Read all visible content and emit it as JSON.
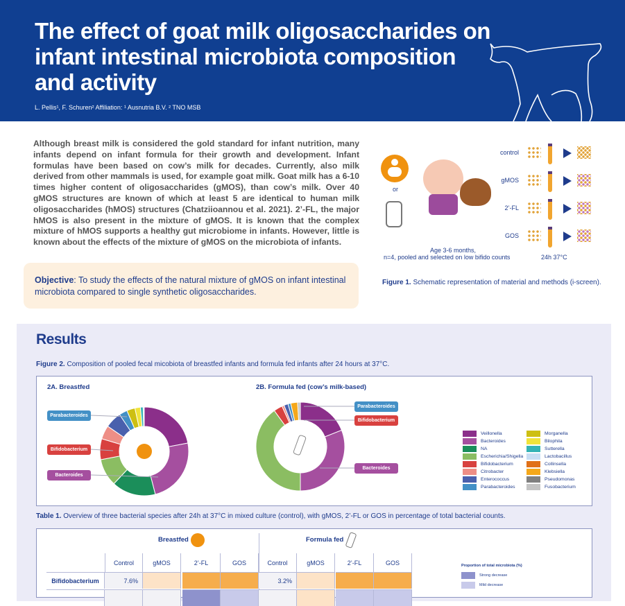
{
  "header": {
    "title": "The effect of goat milk oligosaccharides on infant intestinal microbiota composition and activity",
    "authors": "L. Pellis¹, F. Schuren² Affiliation: ¹ Ausnutria B.V. ² TNO MSB"
  },
  "intro": "Although breast milk is considered the gold standard for infant nutrition, many infants depend on infant formula for their growth and development. Infant formulas have been based on cow’s milk for decades. Currently, also milk derived from other mammals is used, for example goat milk. Goat milk has a 6-10 times higher content of oligosaccharides (gMOS), than cow’s milk. Over 40 gMOS structures are known of which at least 5 are identical to human milk oligosaccharides (hMOS) structures (Chatziioannou et al. 2021). 2’-FL, the major hMOS is also present in the mixture of gMOS. It is known that the complex mixture of hMOS supports a healthy gut microbiome in infants. However, little is known about the effects of the  mixture of gMOS on the microbiota of infants.",
  "objective": {
    "label": "Objective",
    "text": ": To study the effects of the natural mixture of gMOS on infant intestinal microbiota compared to single synthetic oligosaccharides."
  },
  "figure1": {
    "or": "or",
    "conditions": [
      "control",
      "gMOS",
      "2’-FL",
      "GOS"
    ],
    "age": "Age 3-6 months,",
    "n": "n=4, pooled and selected on low bifido counts",
    "incubation": "24h 37°C",
    "caption_label": "Figure 1.",
    "caption": " Schematic representation of material and methods (i-screen)."
  },
  "results": {
    "title": "Results"
  },
  "figure2": {
    "caption_label": "Figure 2.",
    "caption": " Composition of pooled fecal micobiota of breastfed infants and formula fed infants after 24 hours at 37°C.",
    "panel_a": "2A. Breastfed",
    "panel_b": "2B. Formula fed (cow’s milk-based)",
    "callouts": [
      "Parabacteroides",
      "Bifidobacterium",
      "Bacteroides"
    ]
  },
  "chart_data": [
    {
      "type": "pie",
      "title": "2A. Breastfed",
      "categories": [
        "Veillonella",
        "Bacteroides",
        "NA",
        "Escherichia/Shigella",
        "Bifidobacterium",
        "Citrobacter",
        "Enterococcus",
        "Parabacteroides",
        "Morganella",
        "Bilophila",
        "Sutterella",
        "Lactobacillus"
      ],
      "values": [
        22,
        24,
        16,
        10,
        7.6,
        5,
        6,
        3,
        3,
        2,
        1,
        0.4
      ]
    },
    {
      "type": "pie",
      "title": "2B. Formula fed (cow’s milk-based)",
      "categories": [
        "Veillonella",
        "Bacteroides",
        "Escherichia/Shigella",
        "Bifidobacterium",
        "Citrobacter",
        "Enterococcus",
        "Parabacteroides",
        "Klebsiella",
        "Fusobacterium"
      ],
      "values": [
        19,
        31,
        40,
        3.2,
        0.8,
        1.5,
        1,
        2.5,
        1
      ]
    }
  ],
  "legend": [
    {
      "name": "Veillonella",
      "color": "#8b2f8a"
    },
    {
      "name": "Bacteroides",
      "color": "#a54f9f"
    },
    {
      "name": "NA",
      "color": "#1b8e5a"
    },
    {
      "name": "Escherichia/Shigella",
      "color": "#8bbd62"
    },
    {
      "name": "Bifidobacterium",
      "color": "#d8413f"
    },
    {
      "name": "Citrobacter",
      "color": "#ee8e86"
    },
    {
      "name": "Enterococcus",
      "color": "#4a60ad"
    },
    {
      "name": "Parabacteroides",
      "color": "#4390c6"
    },
    {
      "name": "Morganella",
      "color": "#cdbf12"
    },
    {
      "name": "Bilophila",
      "color": "#f0e33b"
    },
    {
      "name": "Sutterella",
      "color": "#34b3b5"
    },
    {
      "name": "Lactobacillus",
      "color": "#c8def3"
    },
    {
      "name": "Collinsella",
      "color": "#e07018"
    },
    {
      "name": "Klebsiella",
      "color": "#f5a81b"
    },
    {
      "name": "Pseudomonas",
      "color": "#808080"
    },
    {
      "name": "Fusobacterium",
      "color": "#c4c4c4"
    }
  ],
  "table1": {
    "caption_label": "Table 1.",
    "caption": " Overview of three bacterial species after 24h at 37°C in mixed culture (control), with gMOS, 2’-FL or GOS in percentage of total bacterial counts.",
    "groups": [
      "Breastfed",
      "Formula fed"
    ],
    "columns": [
      "Control",
      "gMOS",
      "2’-FL",
      "GOS",
      "Control",
      "gMOS",
      "2’-FL",
      "GOS"
    ],
    "rows": [
      {
        "name": "Bifidobacterium",
        "cells": [
          "7.6%",
          "",
          "",
          "",
          "3.2%",
          "",
          "",
          ""
        ],
        "colors": [
          "#f2f2f6",
          "#fde3c7",
          "#f6ad4c",
          "#f6ad4c",
          "#f2f2f6",
          "#fde3c7",
          "#f6ad4c",
          "#f6ad4c"
        ]
      },
      {
        "name": "",
        "cells": [
          "",
          "",
          "",
          "",
          "",
          "",
          "",
          ""
        ],
        "colors": [
          "#f2f2f6",
          "#f2f2f6",
          "#8e92cc",
          "#c8caea",
          "#f2f2f6",
          "#fde3c7",
          "#c8caea",
          "#c8caea"
        ]
      }
    ],
    "legend_title": "Proportion of total microbiota (%)",
    "legend": [
      {
        "label": "Strong decrease",
        "color": "#8e92cc"
      },
      {
        "label": "Mild decrease",
        "color": "#c8caea"
      }
    ]
  }
}
